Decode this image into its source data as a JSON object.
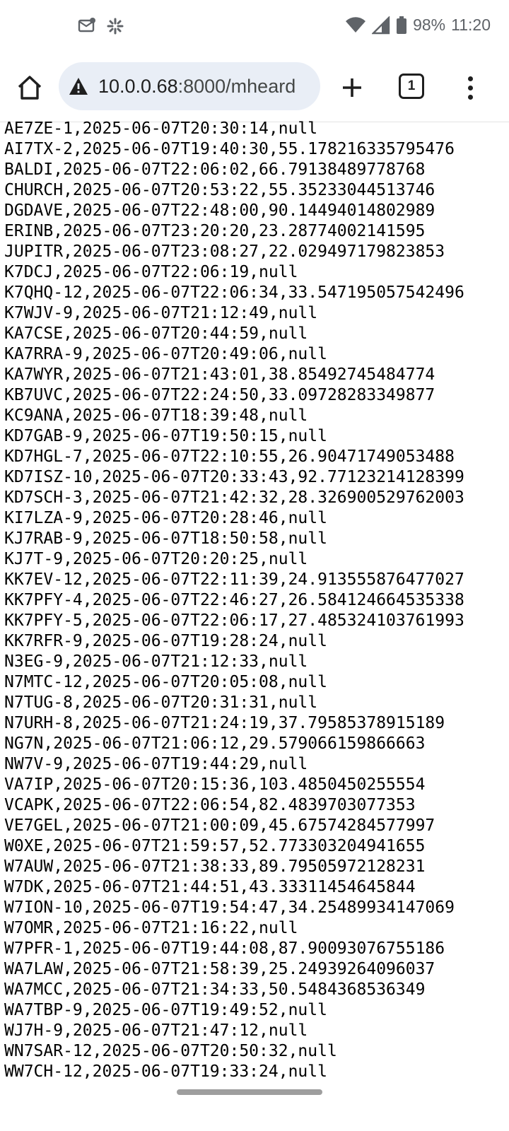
{
  "status_bar": {
    "battery": "98%",
    "time": "11:20",
    "icons": [
      "mail-notification-icon",
      "pinwheel-icon",
      "wifi-icon",
      "signal-icon",
      "battery-icon"
    ]
  },
  "browser": {
    "url_host": "10.0.0.68",
    "url_path": ":8000/mheard",
    "tab_count": "1",
    "icons": [
      "home-icon",
      "not-secure-warning-icon",
      "plus-icon",
      "tab-switcher-icon",
      "more-vert-icon"
    ]
  },
  "page": {
    "lines": [
      "AE7ZE-1,2025-06-07T20:30:14,null",
      "AI7TX-2,2025-06-07T19:40:30,55.178216335795476",
      "BALDI,2025-06-07T22:06:02,66.79138489778768",
      "CHURCH,2025-06-07T20:53:22,55.35233044513746",
      "DGDAVE,2025-06-07T22:48:00,90.14494014802989",
      "ERINB,2025-06-07T23:20:20,23.28774002141595",
      "JUPITR,2025-06-07T23:08:27,22.029497179823853",
      "K7DCJ,2025-06-07T22:06:19,null",
      "K7QHQ-12,2025-06-07T22:06:34,33.547195057542496",
      "K7WJV-9,2025-06-07T21:12:49,null",
      "KA7CSE,2025-06-07T20:44:59,null",
      "KA7RRA-9,2025-06-07T20:49:06,null",
      "KA7WYR,2025-06-07T21:43:01,38.85492745484774",
      "KB7UVC,2025-06-07T22:24:50,33.09728283349877",
      "KC9ANA,2025-06-07T18:39:48,null",
      "KD7GAB-9,2025-06-07T19:50:15,null",
      "KD7HGL-7,2025-06-07T22:10:55,26.90471749053488",
      "KD7ISZ-10,2025-06-07T20:33:43,92.77123214128399",
      "KD7SCH-3,2025-06-07T21:42:32,28.326900529762003",
      "KI7LZA-9,2025-06-07T20:28:46,null",
      "KJ7RAB-9,2025-06-07T18:50:58,null",
      "KJ7T-9,2025-06-07T20:20:25,null",
      "KK7EV-12,2025-06-07T22:11:39,24.913555876477027",
      "KK7PFY-4,2025-06-07T22:46:27,26.584124664535338",
      "KK7PFY-5,2025-06-07T22:06:17,27.485324103761993",
      "KK7RFR-9,2025-06-07T19:28:24,null",
      "N3EG-9,2025-06-07T21:12:33,null",
      "N7MTC-12,2025-06-07T20:05:08,null",
      "N7TUG-8,2025-06-07T20:31:31,null",
      "N7URH-8,2025-06-07T21:24:19,37.79585378915189",
      "NG7N,2025-06-07T21:06:12,29.579066159866663",
      "NW7V-9,2025-06-07T19:44:29,null",
      "VA7IP,2025-06-07T20:15:36,103.4850450255554",
      "VCAPK,2025-06-07T22:06:54,82.4839703077353",
      "VE7GEL,2025-06-07T21:00:09,45.67574284577997",
      "W0XE,2025-06-07T21:59:57,52.773303204941655",
      "W7AUW,2025-06-07T21:38:33,89.79505972128231",
      "W7DK,2025-06-07T21:44:51,43.33311454645844",
      "W7ION-10,2025-06-07T19:54:47,34.25489934147069",
      "W7OMR,2025-06-07T21:16:22,null",
      "W7PFR-1,2025-06-07T19:44:08,87.90093076755186",
      "WA7LAW,2025-06-07T21:58:39,25.24939264096037",
      "WA7MCC,2025-06-07T21:34:33,50.5484368536349",
      "WA7TBP-9,2025-06-07T19:49:52,null",
      "WJ7H-9,2025-06-07T21:47:12,null",
      "WN7SAR-12,2025-06-07T20:50:32,null",
      "WW7CH-12,2025-06-07T19:33:24,null"
    ]
  }
}
